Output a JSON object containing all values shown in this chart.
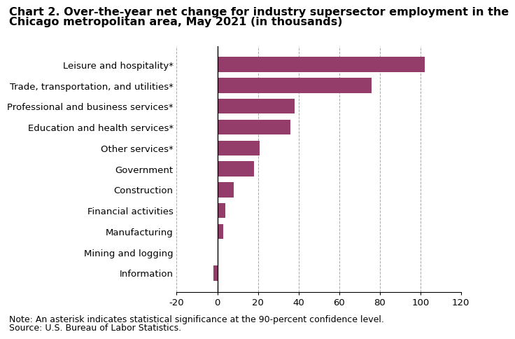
{
  "title_line1": "Chart 2. Over-the-year net change for industry supersector employment in the",
  "title_line2": "Chicago metropolitan area, May 2021 (in thousands)",
  "categories": [
    "Information",
    "Mining and logging",
    "Manufacturing",
    "Financial activities",
    "Construction",
    "Government",
    "Other services*",
    "Education and health services*",
    "Professional and business services*",
    "Trade, transportation, and utilities*",
    "Leisure and hospitality*"
  ],
  "values": [
    -2,
    0,
    3,
    4,
    8,
    18,
    21,
    36,
    38,
    76,
    102
  ],
  "bar_color": "#943d6b",
  "xlim": [
    -20,
    120
  ],
  "xticks": [
    -20,
    0,
    20,
    40,
    60,
    80,
    100,
    120
  ],
  "note_line1": "Note: An asterisk indicates statistical significance at the 90-percent confidence level.",
  "note_line2": "Source: U.S. Bureau of Labor Statistics.",
  "title_fontsize": 11.5,
  "tick_fontsize": 9.5,
  "note_fontsize": 9.0,
  "bar_height": 0.72
}
